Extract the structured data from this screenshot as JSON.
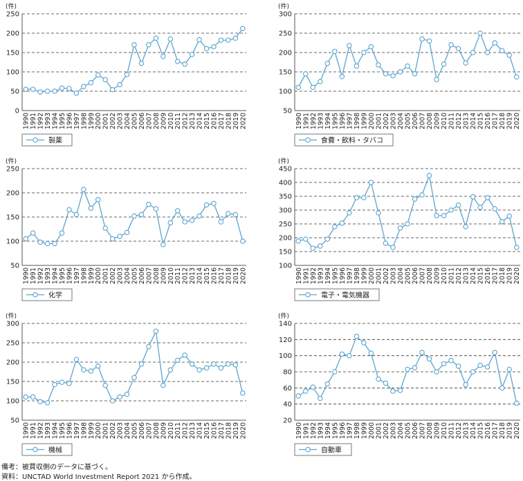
{
  "unit_label": "(件)",
  "x_years": [
    "1990",
    "1991",
    "1992",
    "1993",
    "1994",
    "1995",
    "1996",
    "1997",
    "1998",
    "1999",
    "2000",
    "2001",
    "2002",
    "2003",
    "2004",
    "2005",
    "2006",
    "2007",
    "2008",
    "2009",
    "2010",
    "2011",
    "2012",
    "2013",
    "2014",
    "2015",
    "2016",
    "2017",
    "2018",
    "2019",
    "2020"
  ],
  "colors": {
    "line": "#5ba3d0",
    "marker_fill": "#ffffff",
    "grid": "#333333",
    "axis": "#555555"
  },
  "chart_data": [
    {
      "type": "line",
      "legend": "製薬",
      "ylim": [
        0,
        250
      ],
      "yticks": [
        0,
        50,
        100,
        150,
        200,
        250
      ],
      "values": [
        55,
        55,
        48,
        50,
        50,
        58,
        57,
        45,
        62,
        72,
        92,
        80,
        54,
        67,
        93,
        170,
        122,
        170,
        187,
        140,
        185,
        127,
        120,
        145,
        183,
        160,
        165,
        182,
        182,
        187,
        212
      ]
    },
    {
      "type": "line",
      "legend": "食費・飲料・タバコ",
      "ylim": [
        50,
        300
      ],
      "yticks": [
        50,
        100,
        150,
        200,
        250,
        300
      ],
      "values": [
        110,
        145,
        110,
        125,
        172,
        203,
        138,
        218,
        165,
        200,
        215,
        168,
        145,
        140,
        150,
        165,
        145,
        235,
        230,
        130,
        170,
        220,
        210,
        173,
        200,
        250,
        200,
        225,
        205,
        193,
        137
      ]
    },
    {
      "type": "line",
      "legend": "化学",
      "ylim": [
        50,
        250
      ],
      "yticks": [
        50,
        100,
        150,
        200,
        250
      ],
      "values": [
        105,
        117,
        98,
        95,
        95,
        117,
        165,
        155,
        207,
        168,
        186,
        127,
        105,
        110,
        118,
        152,
        155,
        176,
        167,
        93,
        138,
        163,
        140,
        143,
        152,
        175,
        178,
        140,
        157,
        155,
        100
      ]
    },
    {
      "type": "line",
      "legend": "電子・電気機器",
      "ylim": [
        100,
        450
      ],
      "yticks": [
        100,
        150,
        200,
        250,
        300,
        350,
        400,
        450
      ],
      "values": [
        188,
        195,
        162,
        170,
        195,
        240,
        253,
        290,
        345,
        345,
        400,
        290,
        180,
        165,
        235,
        250,
        340,
        355,
        425,
        280,
        280,
        300,
        318,
        240,
        348,
        310,
        345,
        305,
        258,
        278,
        165
      ]
    },
    {
      "type": "line",
      "legend": "機械",
      "ylim": [
        50,
        300
      ],
      "yticks": [
        50,
        100,
        150,
        200,
        250,
        300
      ],
      "values": [
        110,
        110,
        98,
        95,
        142,
        148,
        145,
        207,
        180,
        177,
        190,
        140,
        100,
        110,
        117,
        160,
        195,
        240,
        280,
        140,
        180,
        205,
        218,
        195,
        180,
        185,
        195,
        185,
        195,
        193,
        120
      ]
    },
    {
      "type": "line",
      "legend": "自動車",
      "ylim": [
        20,
        140
      ],
      "yticks": [
        20,
        40,
        60,
        80,
        100,
        120,
        140
      ],
      "values": [
        50,
        56,
        61,
        47,
        65,
        80,
        102,
        100,
        124,
        116,
        103,
        71,
        66,
        56,
        57,
        83,
        85,
        104,
        96,
        80,
        90,
        94,
        87,
        64,
        80,
        88,
        86,
        104,
        60,
        83,
        41
      ]
    }
  ],
  "footer": {
    "line1": "備考：被買収側のデータに基づく。",
    "line2": "資料：UNCTAD World Investment Report 2021 から作成。"
  }
}
